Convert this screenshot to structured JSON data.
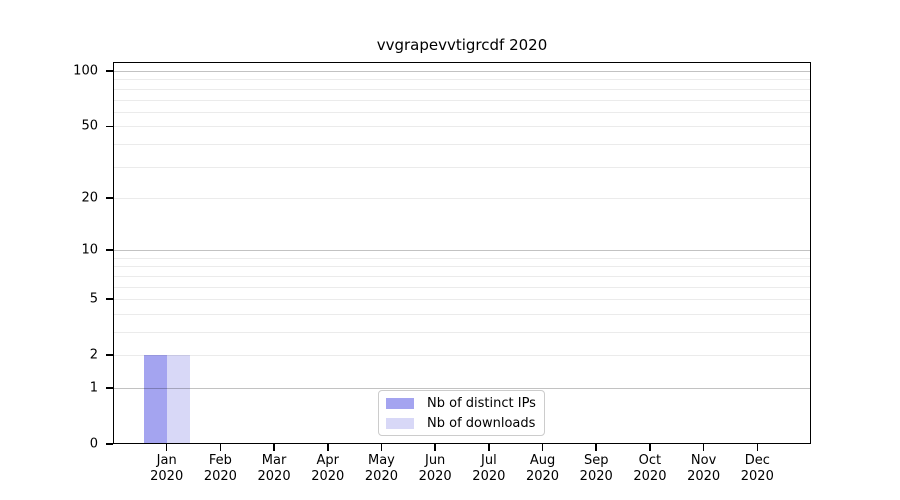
{
  "chart_data": {
    "type": "bar",
    "title": "vvgrapevvtigrcdf 2020",
    "categories": [
      "Jan 2020",
      "Feb 2020",
      "Mar 2020",
      "Apr 2020",
      "May 2020",
      "Jun 2020",
      "Jul 2020",
      "Aug 2020",
      "Sep 2020",
      "Oct 2020",
      "Nov 2020",
      "Dec 2020"
    ],
    "series": [
      {
        "name": "Nb of distinct IPs",
        "color": "#a4a4f0",
        "values": [
          2,
          0,
          0,
          0,
          0,
          0,
          0,
          0,
          0,
          0,
          0,
          0
        ]
      },
      {
        "name": "Nb of downloads",
        "color": "#d8d8f7",
        "values": [
          2,
          0,
          0,
          0,
          0,
          0,
          0,
          0,
          0,
          0,
          0,
          0
        ]
      }
    ],
    "xlabel": "",
    "ylabel": "",
    "yscale": "log1p",
    "ylim": [
      0,
      112
    ],
    "y_tick_values": [
      0,
      1,
      2,
      5,
      10,
      20,
      50,
      100
    ],
    "y_tick_labels": [
      "0",
      "1",
      "2",
      "5",
      "10",
      "20",
      "50",
      "100"
    ],
    "grid": {
      "on": true,
      "major_values": [
        1,
        10,
        100
      ],
      "minor_values": [
        2,
        3,
        4,
        5,
        6,
        7,
        8,
        9,
        20,
        30,
        40,
        50,
        60,
        70,
        80,
        90
      ],
      "major_color": "rgba(0,0,0,0.24)",
      "minor_color": "rgba(0,0,0,0.08)"
    },
    "legend": {
      "position": "lower center",
      "items": [
        "Nb of distinct IPs",
        "Nb of downloads"
      ]
    },
    "colors": {
      "background": "#ffffff",
      "axis": "#000000",
      "text": "#000000"
    }
  }
}
